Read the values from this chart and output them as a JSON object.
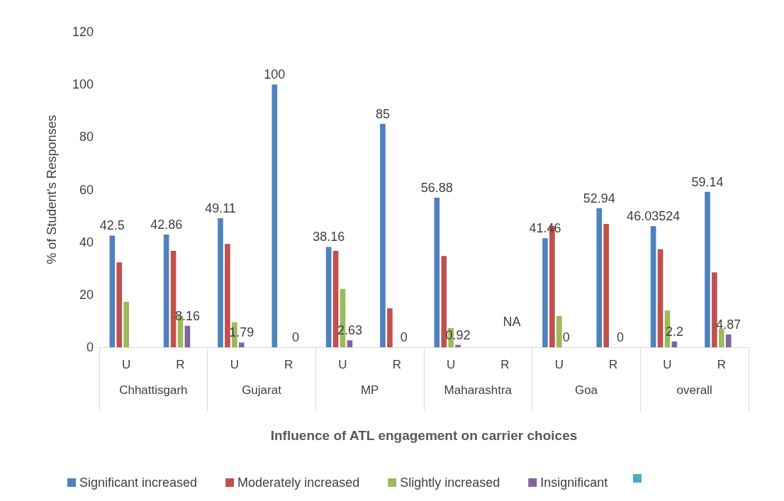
{
  "chart_data": {
    "type": "bar",
    "xlabel": "Influence of ATL engagement on carrier choices",
    "ylabel": "% of Student's Responses",
    "categories": [
      "U",
      "R",
      "U",
      "R",
      "U",
      "R",
      "U",
      "R",
      "U",
      "R",
      "U",
      "R"
    ],
    "annotations": [
      "Chhattisgarh",
      "Gujarat",
      "MP",
      "Maharashtra",
      "Goa",
      "overall"
    ],
    "series": [
      {
        "name": "Significant increased",
        "color": "#4f81bd",
        "values": [
          42.5,
          42.86,
          49.11,
          100,
          38.16,
          85,
          56.88,
          null,
          41.46,
          52.94,
          46.03524,
          59.14
        ],
        "value_labels": [
          "42.5",
          "42.86",
          "49.11",
          "100",
          "38.16",
          "85",
          "56.88",
          null,
          "41.46",
          "52.94",
          "46.03524",
          "59.14"
        ]
      },
      {
        "name": "Moderately increased",
        "color": "#c0504d",
        "values": [
          32.3,
          36.7,
          39.3,
          0,
          36.7,
          14.8,
          34.7,
          null,
          46.1,
          46.9,
          37.3,
          28.5
        ]
      },
      {
        "name": "Slightly increased",
        "color": "#9bbb59",
        "values": [
          17.3,
          11.9,
          9.5,
          0,
          22.2,
          0,
          7.3,
          null,
          11.9,
          0,
          14.0,
          7.1
        ]
      },
      {
        "name": "Insignificant",
        "color": "#8064a2",
        "values": [
          null,
          8.16,
          1.79,
          0,
          2.63,
          0,
          0.92,
          null,
          0,
          0,
          2.2,
          4.87
        ],
        "value_labels": [
          null,
          "8.16",
          "1.79",
          "0",
          "2.63",
          "0",
          "0.92",
          "NA",
          "0",
          "0",
          "2.2",
          "4.87"
        ]
      },
      {
        "color": "#4bacc6",
        "values": [
          null,
          null,
          null,
          null,
          null,
          null,
          null,
          null,
          null,
          null,
          null,
          null
        ]
      }
    ],
    "ylim": [
      0,
      120
    ],
    "yticks": [
      0,
      20,
      40,
      60,
      80,
      100,
      120
    ],
    "grid": false,
    "legend": "bottom"
  }
}
